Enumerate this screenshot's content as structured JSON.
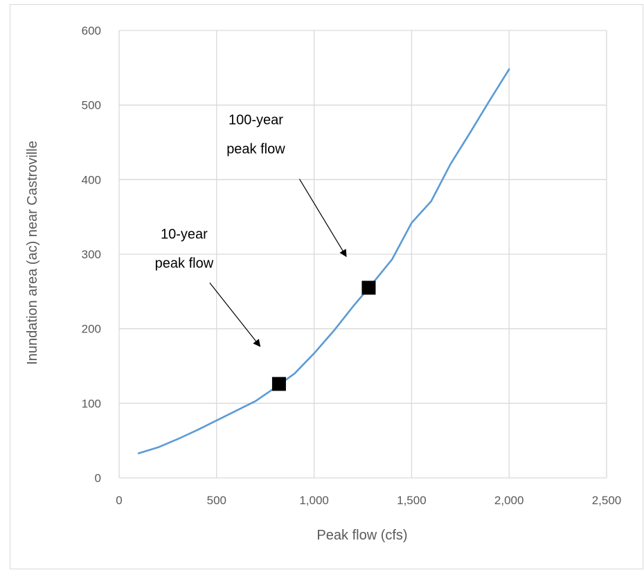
{
  "chart_data": {
    "type": "line",
    "xlabel": "Peak flow (cfs)",
    "ylabel": "Inundation area (ac) near Castroville",
    "xlim": [
      0,
      2500
    ],
    "ylim": [
      0,
      600
    ],
    "x_ticks": [
      0,
      500,
      1000,
      1500,
      2000,
      2500
    ],
    "x_tick_labels": [
      "0",
      "500",
      "1,000",
      "1,500",
      "2,000",
      "2,500"
    ],
    "y_ticks": [
      0,
      100,
      200,
      300,
      400,
      500,
      600
    ],
    "y_tick_labels": [
      "0",
      "100",
      "200",
      "300",
      "400",
      "500",
      "600"
    ],
    "grid": true,
    "series": [
      {
        "color": "#5b9bd5",
        "x": [
          100,
          200,
          300,
          400,
          500,
          600,
          700,
          800,
          900,
          1000,
          1100,
          1200,
          1300,
          1400,
          1500,
          1600,
          1700,
          1800,
          1900,
          2000
        ],
        "y": [
          33,
          41,
          52,
          64,
          77,
          90,
          103,
          121,
          140,
          167,
          197,
          230,
          261,
          293,
          342,
          371,
          421,
          463,
          506,
          548
        ]
      }
    ],
    "markers": [
      {
        "label": "10-year peak flow",
        "x": 820,
        "y": 126,
        "shape": "square",
        "color": "#000000"
      },
      {
        "label": "100-year peak flow",
        "x": 1280,
        "y": 255,
        "shape": "square",
        "color": "#000000"
      }
    ],
    "annotations": [
      {
        "lines": [
          "10-year",
          "peak flow"
        ],
        "points_to": 0
      },
      {
        "lines": [
          "100-year",
          "peak flow"
        ],
        "points_to": 1
      }
    ]
  }
}
